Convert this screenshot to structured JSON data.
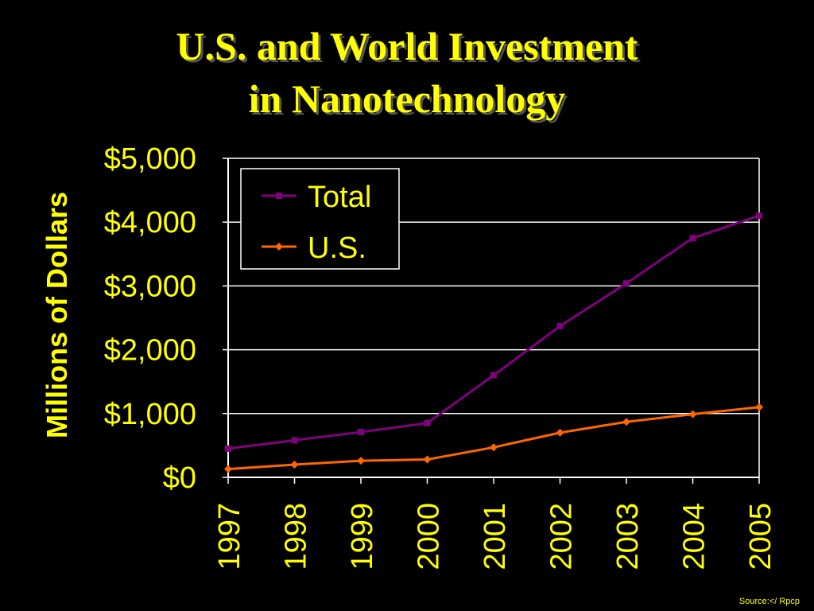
{
  "slide": {
    "title_line1": "U.S. and World Investment",
    "title_line2": "in Nanotechnology",
    "source": "Source:</ Rpcp"
  },
  "colors": {
    "background": "#000000",
    "text": "#ffff00",
    "grid": "#ffffff",
    "total": "#800080",
    "us": "#ff6600"
  },
  "chart_data": {
    "type": "line",
    "x": [
      "1997",
      "1998",
      "1999",
      "2000",
      "2001",
      "2002",
      "2003",
      "2004",
      "2005"
    ],
    "series": [
      {
        "name": "Total",
        "marker": "square",
        "color": "#800080",
        "values": [
          450,
          580,
          710,
          850,
          1600,
          2370,
          3040,
          3750,
          4100
        ]
      },
      {
        "name": "U.S.",
        "marker": "diamond",
        "color": "#ff6600",
        "values": [
          130,
          200,
          260,
          280,
          470,
          700,
          870,
          990,
          1100
        ]
      }
    ],
    "ylabel": "Millions of Dollars",
    "xlabel": "",
    "ylim": [
      0,
      5000
    ],
    "yticks": [
      {
        "value": 0,
        "label": "$0"
      },
      {
        "value": 1000,
        "label": "$1,000"
      },
      {
        "value": 2000,
        "label": "$2,000"
      },
      {
        "value": 3000,
        "label": "$3,000"
      },
      {
        "value": 4000,
        "label": "$4,000"
      },
      {
        "value": 5000,
        "label": "$5,000"
      }
    ],
    "grid": true,
    "legend_position": "top-left"
  }
}
